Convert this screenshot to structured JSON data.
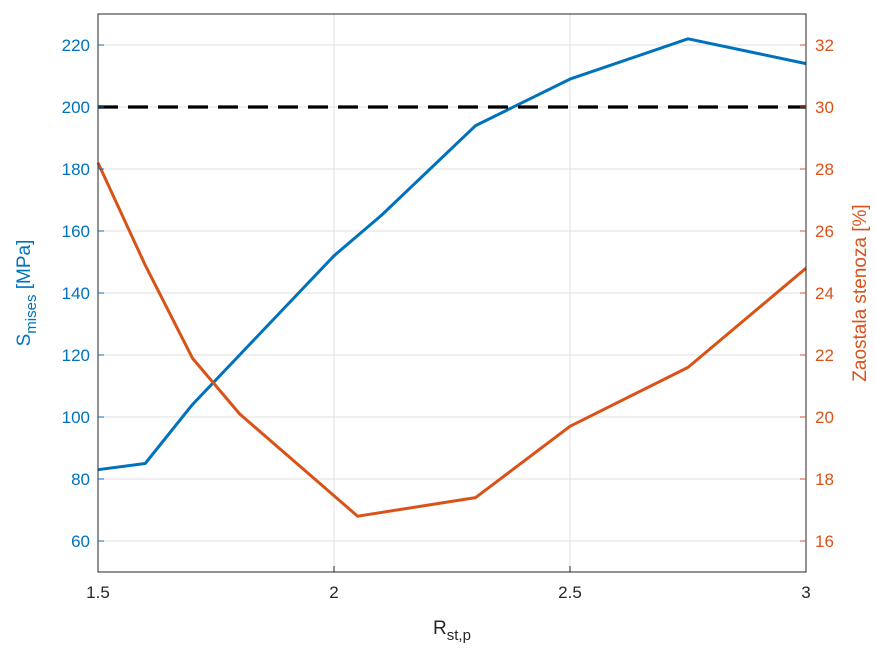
{
  "chart_data": {
    "type": "line",
    "title": "",
    "xlabel": {
      "main": "R",
      "sub": "st,p"
    },
    "ylabel_left": {
      "main": "S",
      "sub": "mises",
      "suffix": " [MPa]"
    },
    "ylabel_right": "Zaostala stenoza [%]",
    "xlim": [
      1.5,
      3
    ],
    "ylim_left": [
      50,
      230
    ],
    "ylim_right": [
      15,
      33
    ],
    "x_ticks": [
      1.5,
      2,
      2.5,
      3
    ],
    "x_tick_labels": [
      "1.5",
      "2",
      "2.5",
      "3"
    ],
    "y_left_ticks": [
      60,
      80,
      100,
      120,
      140,
      160,
      180,
      200,
      220
    ],
    "y_left_tick_labels": [
      "60",
      "80",
      "100",
      "120",
      "140",
      "160",
      "180",
      "200",
      "220"
    ],
    "y_right_ticks": [
      16,
      18,
      20,
      22,
      24,
      26,
      28,
      30,
      32
    ],
    "y_right_tick_labels": [
      "16",
      "18",
      "20",
      "22",
      "24",
      "26",
      "28",
      "30",
      "32"
    ],
    "grid": true,
    "legend": "none",
    "colors": {
      "left": "#0072BD",
      "right": "#D95319",
      "threshold": "#000000"
    },
    "series": [
      {
        "axis": "left",
        "style": "solid",
        "x": [
          1.5,
          1.6,
          1.7,
          1.8,
          1.9,
          2.0,
          2.1,
          2.3,
          2.5,
          2.75,
          3.0
        ],
        "values": [
          83,
          85,
          104,
          120,
          136,
          152,
          165,
          194,
          209,
          222,
          214
        ]
      },
      {
        "axis": "right",
        "style": "solid",
        "x": [
          1.5,
          1.6,
          1.7,
          1.8,
          2.05,
          2.3,
          2.5,
          2.75,
          3.0
        ],
        "values": [
          28.2,
          24.9,
          21.9,
          20.1,
          16.8,
          17.4,
          19.7,
          21.6,
          24.8
        ]
      },
      {
        "axis": "left",
        "style": "dashed",
        "x": [
          1.5,
          3.0
        ],
        "values": [
          200,
          200
        ]
      }
    ]
  }
}
